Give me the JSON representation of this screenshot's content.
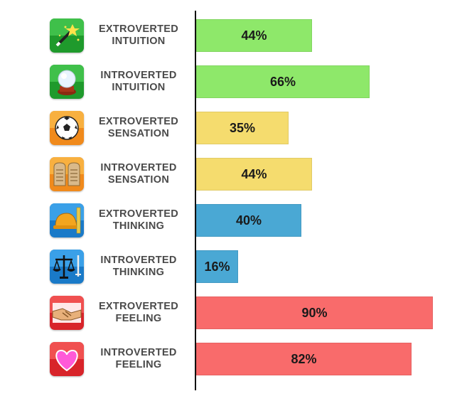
{
  "chart_data": {
    "type": "bar",
    "orientation": "horizontal",
    "xlim": [
      0,
      100
    ],
    "categories": [
      {
        "line1": "EXTROVERTED",
        "line2": "INTUITION",
        "icon": "magic-wand-icon",
        "color": "#8ee86a"
      },
      {
        "line1": "INTROVERTED",
        "line2": "INTUITION",
        "icon": "crystal-ball-icon",
        "color": "#8ee86a"
      },
      {
        "line1": "EXTROVERTED",
        "line2": "SENSATION",
        "icon": "soccer-ball-icon",
        "color": "#f5dc6e"
      },
      {
        "line1": "INTROVERTED",
        "line2": "SENSATION",
        "icon": "stone-tablets-icon",
        "color": "#f5dc6e"
      },
      {
        "line1": "EXTROVERTED",
        "line2": "THINKING",
        "icon": "hard-hat-icon",
        "color": "#4aa8d4"
      },
      {
        "line1": "INTROVERTED",
        "line2": "THINKING",
        "icon": "scales-of-justice-icon",
        "color": "#4aa8d4"
      },
      {
        "line1": "EXTROVERTED",
        "line2": "FEELING",
        "icon": "handshake-icon",
        "color": "#f96b6b"
      },
      {
        "line1": "INTROVERTED",
        "line2": "FEELING",
        "icon": "heart-icon",
        "color": "#f96b6b"
      }
    ],
    "values": [
      44,
      66,
      35,
      44,
      40,
      16,
      90,
      82
    ],
    "value_labels": [
      "44%",
      "66%",
      "35%",
      "44%",
      "40%",
      "16%",
      "90%",
      "82%"
    ]
  }
}
